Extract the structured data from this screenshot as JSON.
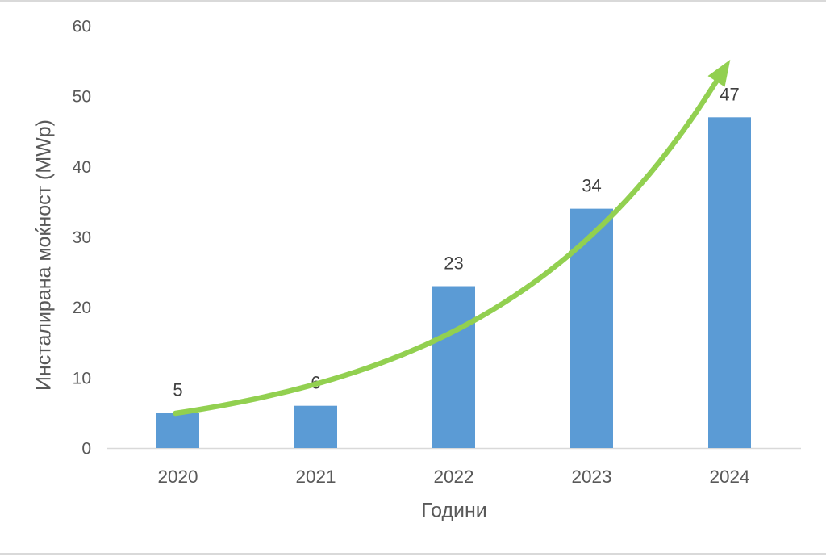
{
  "chart_data": {
    "type": "bar",
    "categories": [
      "2020",
      "2021",
      "2022",
      "2023",
      "2024"
    ],
    "values": [
      5,
      6,
      23,
      34,
      47
    ],
    "title": "",
    "xlabel": "Години",
    "ylabel": "Инсталирана моќност (MWp)",
    "ylim": [
      0,
      60
    ],
    "yticks": [
      0,
      10,
      20,
      30,
      40,
      50,
      60
    ],
    "grid": false,
    "legend": "none",
    "bar_color": "#5B9BD5",
    "trend_color": "#92D050",
    "tick_color": "#595959",
    "value_label_color": "#3F3F3F",
    "axis_line_color": "#D9D9D9",
    "annotations": [
      {
        "type": "trend-arrow",
        "description": "green exponential growth curve starting at top of 2020 bar and ending in an arrowhead above the 2024 bar"
      }
    ]
  }
}
